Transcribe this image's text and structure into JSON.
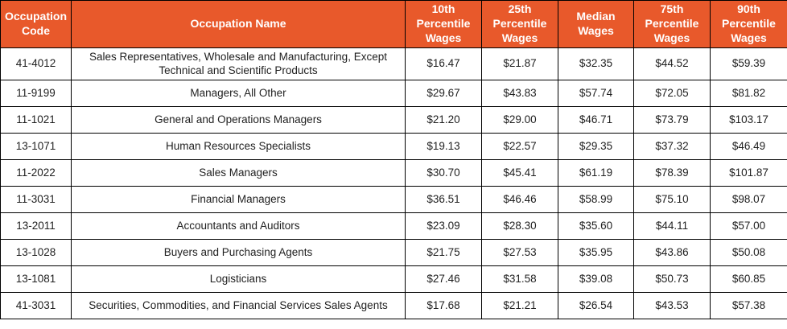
{
  "styles": {
    "header_bg": "#E8592B",
    "header_text": "#FFFFFF",
    "border_color": "#000000",
    "body_text": "#1F1F1F"
  },
  "chart_data": {
    "type": "table",
    "title": "",
    "columns": [
      "Occupation Code",
      "Occupation Name",
      "10th Percentile Wages",
      "25th Percentile Wages",
      "Median Wages",
      "75th Percentile Wages",
      "90th Percentile Wages"
    ],
    "rows": [
      [
        "41-4012",
        "Sales Representatives, Wholesale and Manufacturing, Except Technical and Scientific Products",
        "$16.47",
        "$21.87",
        "$32.35",
        "$44.52",
        "$59.39"
      ],
      [
        "11-9199",
        "Managers, All Other",
        "$29.67",
        "$43.83",
        "$57.74",
        "$72.05",
        "$81.82"
      ],
      [
        "11-1021",
        "General and Operations Managers",
        "$21.20",
        "$29.00",
        "$46.71",
        "$73.79",
        "$103.17"
      ],
      [
        "13-1071",
        "Human Resources Specialists",
        "$19.13",
        "$22.57",
        "$29.35",
        "$37.32",
        "$46.49"
      ],
      [
        "11-2022",
        "Sales Managers",
        "$30.70",
        "$45.41",
        "$61.19",
        "$78.39",
        "$101.87"
      ],
      [
        "11-3031",
        "Financial Managers",
        "$36.51",
        "$46.46",
        "$58.99",
        "$75.10",
        "$98.07"
      ],
      [
        "13-2011",
        "Accountants and Auditors",
        "$23.09",
        "$28.30",
        "$35.60",
        "$44.11",
        "$57.00"
      ],
      [
        "13-1028",
        "Buyers and Purchasing Agents",
        "$21.75",
        "$27.53",
        "$35.95",
        "$43.86",
        "$50.08"
      ],
      [
        "13-1081",
        "Logisticians",
        "$27.46",
        "$31.58",
        "$39.08",
        "$50.73",
        "$60.85"
      ],
      [
        "41-3031",
        "Securities, Commodities, and Financial Services Sales Agents",
        "$17.68",
        "$21.21",
        "$26.54",
        "$43.53",
        "$57.38"
      ]
    ]
  }
}
